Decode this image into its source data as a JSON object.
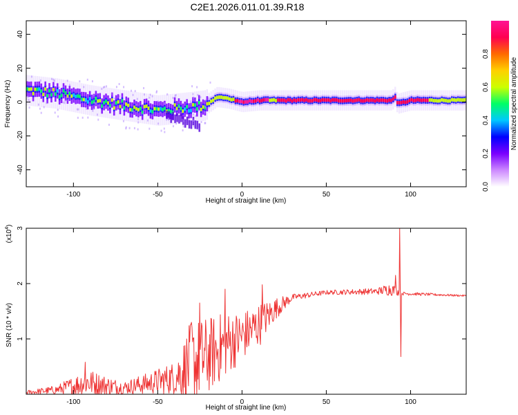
{
  "title": "C2E1.2026.011.01.39.R18",
  "chart_data": [
    {
      "type": "heatmap",
      "xlabel": "Height of straight line (km)",
      "ylabel": "Frequency (Hz)",
      "xlim": [
        -128,
        133
      ],
      "ylim": [
        -50,
        48
      ],
      "xticks": [
        -100,
        -50,
        0,
        50,
        100
      ],
      "yticks": [
        -40,
        -20,
        0,
        20,
        40
      ],
      "grid": false,
      "colorbar": {
        "label": "Normalized spectral amplitude",
        "range": [
          0,
          1
        ],
        "ticks": [
          0.0,
          0.2,
          0.4,
          0.6,
          0.8
        ],
        "colors": [
          "#ffffff",
          "#cc88ff",
          "#7a00ff",
          "#0000ff",
          "#00c8ff",
          "#00ff66",
          "#ccff00",
          "#ffd000",
          "#ff6a00",
          "#ff0050",
          "#ff1493"
        ]
      },
      "ridge": {
        "description_points": [
          {
            "x": -128,
            "y": 7
          },
          {
            "x": -110,
            "y": 5
          },
          {
            "x": -90,
            "y": 1
          },
          {
            "x": -70,
            "y": -2
          },
          {
            "x": -50,
            "y": -5
          },
          {
            "x": -40,
            "y": -4
          },
          {
            "x": -30,
            "y": -3
          },
          {
            "x": -22,
            "y": -2
          },
          {
            "x": -15,
            "y": 3
          },
          {
            "x": -8,
            "y": 2
          },
          {
            "x": 0,
            "y": 0
          },
          {
            "x": 10,
            "y": 1
          },
          {
            "x": 30,
            "y": 1
          },
          {
            "x": 60,
            "y": 1
          },
          {
            "x": 89,
            "y": 1
          },
          {
            "x": 90,
            "y": 4
          },
          {
            "x": 92,
            "y": -1
          },
          {
            "x": 100,
            "y": 1
          },
          {
            "x": 133,
            "y": 1
          }
        ]
      }
    },
    {
      "type": "line",
      "xlabel": "Height of straight line (km)",
      "ylabel": "SNR (10 * v/v)",
      "yscale_label": "(x10",
      "yscale_exp": "4",
      "yscale_close": ")",
      "xlim": [
        -128,
        133
      ],
      "ylim": [
        0,
        3
      ],
      "xticks": [
        -100,
        -50,
        0,
        50,
        100
      ],
      "yticks": [
        1,
        2,
        3
      ],
      "grid": false,
      "series": [
        {
          "color": "#ee3333",
          "envelope": [
            {
              "x": -128,
              "base": 0.03,
              "amp": 0.04
            },
            {
              "x": -110,
              "base": 0.08,
              "amp": 0.08
            },
            {
              "x": -100,
              "base": 0.15,
              "amp": 0.18
            },
            {
              "x": -92,
              "base": 0.22,
              "amp": 0.25
            },
            {
              "x": -80,
              "base": 0.15,
              "amp": 0.18
            },
            {
              "x": -70,
              "base": 0.12,
              "amp": 0.12
            },
            {
              "x": -55,
              "base": 0.2,
              "amp": 0.2
            },
            {
              "x": -40,
              "base": 0.3,
              "amp": 0.3
            },
            {
              "x": -30,
              "base": 0.55,
              "amp": 0.8
            },
            {
              "x": -20,
              "base": 0.7,
              "amp": 0.7
            },
            {
              "x": -10,
              "base": 0.9,
              "amp": 0.6
            },
            {
              "x": 0,
              "base": 1.05,
              "amp": 0.45
            },
            {
              "x": 10,
              "base": 1.25,
              "amp": 0.4
            },
            {
              "x": 20,
              "base": 1.55,
              "amp": 0.2
            },
            {
              "x": 30,
              "base": 1.75,
              "amp": 0.06
            },
            {
              "x": 50,
              "base": 1.84,
              "amp": 0.04
            },
            {
              "x": 80,
              "base": 1.86,
              "amp": 0.06
            },
            {
              "x": 88,
              "base": 1.9,
              "amp": 0.12
            },
            {
              "x": 96,
              "base": 1.82,
              "amp": 0.03
            },
            {
              "x": 133,
              "base": 1.78,
              "amp": 0.015
            }
          ],
          "spikes": [
            {
              "x": -93,
              "y": 0.58
            },
            {
              "x": -30,
              "y": 1.3
            },
            {
              "x": -25,
              "y": 1.65
            },
            {
              "x": -10,
              "y": 1.9
            },
            {
              "x": 12,
              "y": 1.98
            },
            {
              "x": 91,
              "y": 2.15
            },
            {
              "x": 93.5,
              "y": 3.0
            },
            {
              "x": 94.2,
              "y": 0.68
            }
          ]
        }
      ]
    }
  ]
}
